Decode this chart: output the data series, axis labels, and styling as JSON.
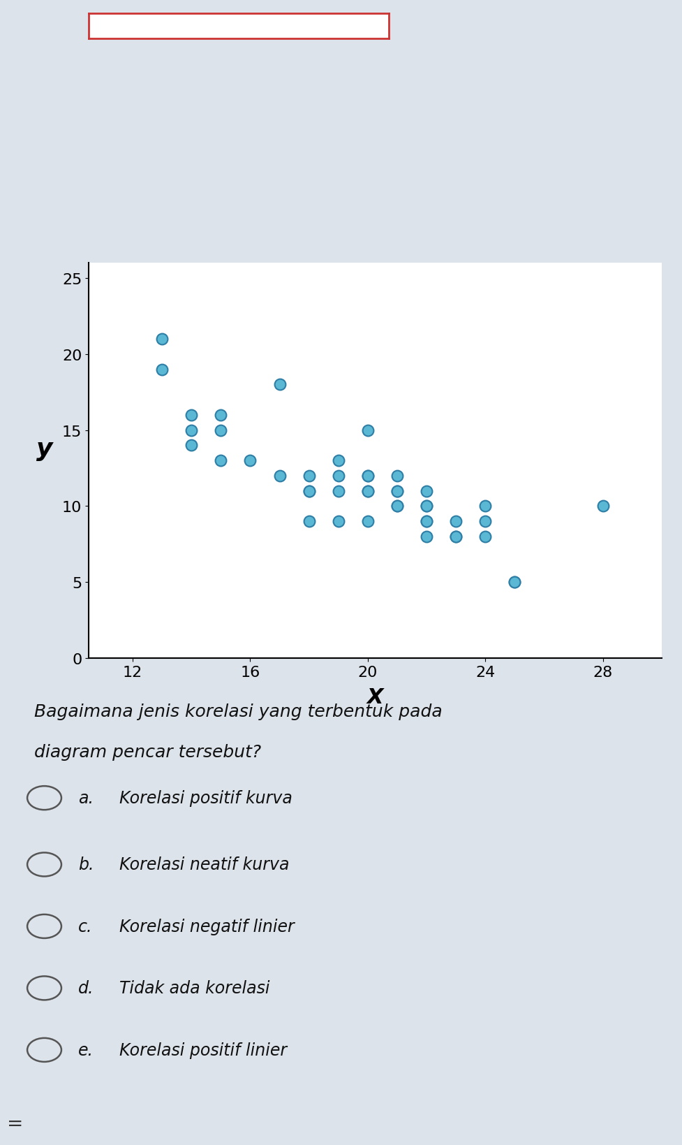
{
  "x_data": [
    13,
    13,
    14,
    14,
    14,
    15,
    15,
    15,
    16,
    17,
    17,
    18,
    18,
    18,
    18,
    19,
    19,
    19,
    19,
    20,
    20,
    20,
    20,
    20,
    20,
    21,
    21,
    21,
    21,
    21,
    22,
    22,
    22,
    22,
    22,
    22,
    23,
    23,
    23,
    24,
    24,
    24,
    25,
    25,
    28
  ],
  "y_data": [
    19,
    21,
    14,
    15,
    16,
    15,
    16,
    13,
    13,
    12,
    18,
    11,
    12,
    11,
    9,
    9,
    11,
    12,
    13,
    9,
    11,
    11,
    12,
    12,
    15,
    10,
    10,
    11,
    11,
    12,
    10,
    10,
    8,
    9,
    9,
    11,
    8,
    8,
    9,
    8,
    9,
    10,
    5,
    5,
    10
  ],
  "dot_color": "#5BB8D4",
  "dot_edge_color": "#2E7EA6",
  "dot_size": 130,
  "xlabel": "X",
  "ylabel": "y",
  "xlim": [
    10.5,
    30
  ],
  "ylim": [
    0,
    26
  ],
  "xticks": [
    12,
    16,
    20,
    24,
    28
  ],
  "yticks": [
    0,
    5,
    10,
    15,
    20,
    25
  ],
  "plot_bg_color": "#ffffff",
  "fig_bg_color": "#dde3ea",
  "lower_bg_color": "#dde3ea",
  "question_text_line1": "Bagaimana jenis korelasi yang terbentuk pada",
  "question_text_line2": "diagram pencar tersebut?",
  "options": [
    {
      "label": "a.",
      "text": "Korelasi positif kurva"
    },
    {
      "label": "b.",
      "text": "Korelasi neatif kurva"
    },
    {
      "label": "c.",
      "text": "Korelasi negatif linier"
    },
    {
      "label": "d.",
      "text": "Tidak ada korelasi"
    },
    {
      "label": "e.",
      "text": "Korelasi positif linier"
    }
  ],
  "title_box_color": "#ffffff",
  "title_box_edge_color": "#cc3333",
  "option_text_color": "#111111",
  "question_text_color": "#111111",
  "equal_sign": "="
}
